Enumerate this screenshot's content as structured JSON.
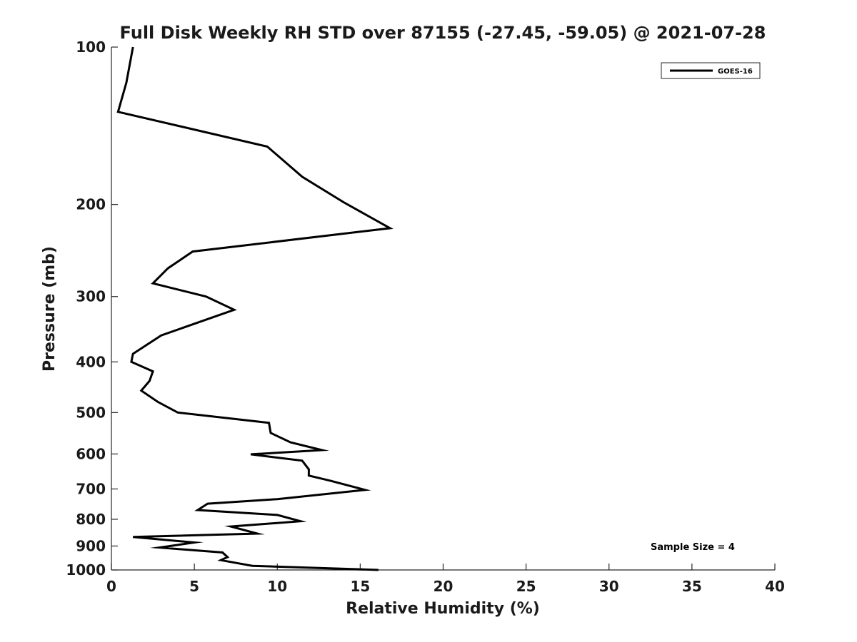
{
  "chart_data": {
    "type": "line",
    "title": "Full Disk Weekly RH STD over 87155 (-27.45, -59.05) @ 2021-07-28",
    "xlabel": "Relative Humidity (%)",
    "ylabel": "Pressure (mb)",
    "xlim": [
      0,
      40
    ],
    "ylim": [
      1000,
      100
    ],
    "y_scale": "log",
    "x_ticks": [
      0,
      5,
      10,
      15,
      20,
      25,
      30,
      35,
      40
    ],
    "x_tick_labels": [
      "0",
      "5",
      "10",
      "15",
      "20",
      "25",
      "30",
      "35",
      "40"
    ],
    "y_ticks": [
      100,
      200,
      300,
      400,
      500,
      600,
      700,
      800,
      900,
      1000
    ],
    "y_tick_labels": [
      "100",
      "200",
      "300",
      "400",
      "500",
      "600",
      "700",
      "800",
      "900",
      "1000"
    ],
    "legend": {
      "position": "top-right",
      "entries": [
        "GOES-16"
      ]
    },
    "annotation": "Sample Size = 4",
    "series": [
      {
        "name": "GOES-16",
        "color": "#000000",
        "points": [
          [
            1.3,
            100
          ],
          [
            0.9,
            117
          ],
          [
            0.4,
            133
          ],
          [
            9.4,
            155
          ],
          [
            11.5,
            177
          ],
          [
            14.0,
            198
          ],
          [
            16.8,
            222
          ],
          [
            4.9,
            246
          ],
          [
            3.4,
            265
          ],
          [
            2.5,
            283
          ],
          [
            5.7,
            300
          ],
          [
            7.4,
            318
          ],
          [
            3.0,
            356
          ],
          [
            1.3,
            386
          ],
          [
            1.2,
            400
          ],
          [
            2.5,
            417
          ],
          [
            2.3,
            435
          ],
          [
            1.8,
            454
          ],
          [
            2.8,
            477
          ],
          [
            4.0,
            500
          ],
          [
            9.5,
            523
          ],
          [
            9.6,
            547
          ],
          [
            10.8,
            570
          ],
          [
            12.7,
            590
          ],
          [
            8.4,
            601
          ],
          [
            11.5,
            618
          ],
          [
            11.9,
            642
          ],
          [
            11.9,
            660
          ],
          [
            13.2,
            675
          ],
          [
            15.3,
            703
          ],
          [
            10.0,
            732
          ],
          [
            5.8,
            747
          ],
          [
            5.2,
            768
          ],
          [
            10.0,
            785
          ],
          [
            11.4,
            807
          ],
          [
            7.2,
            826
          ],
          [
            8.8,
            852
          ],
          [
            1.3,
            865
          ],
          [
            5.0,
            886
          ],
          [
            2.9,
            906
          ],
          [
            6.7,
            926
          ],
          [
            7.0,
            945
          ],
          [
            6.6,
            958
          ],
          [
            8.5,
            982
          ],
          [
            16.1,
            1000
          ]
        ]
      }
    ]
  }
}
